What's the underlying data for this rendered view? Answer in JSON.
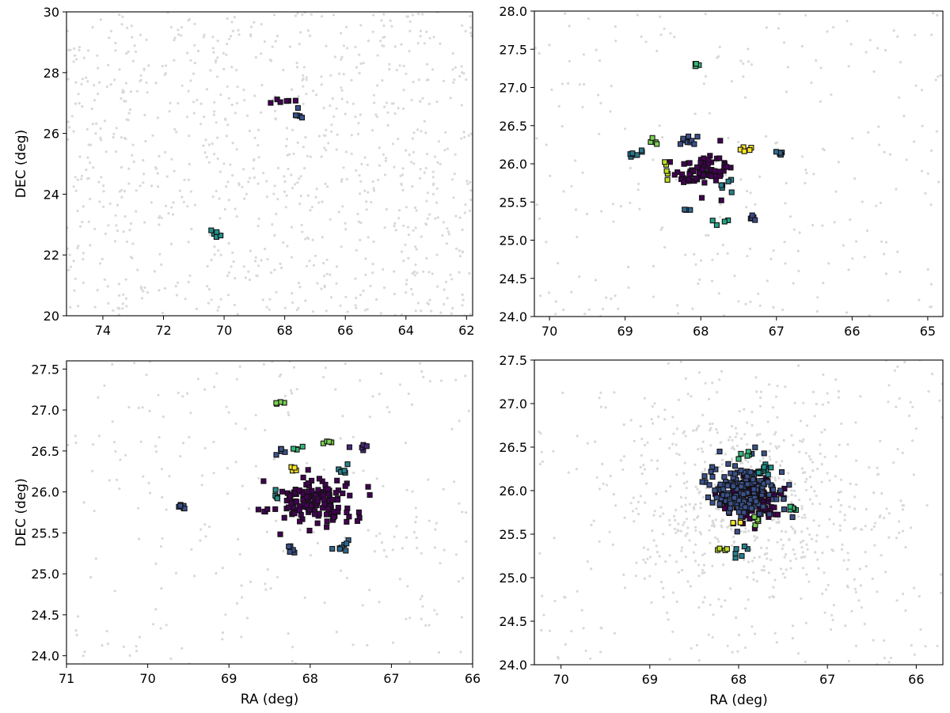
{
  "chart_data": [
    {
      "type": "scatter",
      "xlabel": "",
      "ylabel": "DEC (deg)",
      "xlim": [
        75.2,
        61.8
      ],
      "ylim": [
        20,
        30
      ],
      "xticks": [
        74,
        72,
        70,
        68,
        66,
        64,
        62
      ],
      "yticks": [
        20,
        22,
        24,
        26,
        28,
        30
      ],
      "xtick_labels": [
        "74",
        "72",
        "70",
        "68",
        "66",
        "64",
        "62"
      ],
      "ytick_labels": [
        "20",
        "22",
        "24",
        "26",
        "28",
        "30"
      ],
      "background_points": {
        "color": "#d9d9d9",
        "count": 900,
        "distribution": "uniform"
      },
      "groups": [
        {
          "color": "#440154",
          "ra": 68.2,
          "dec": 27.08,
          "n": 6,
          "spread": [
            0.35,
            0.07
          ]
        },
        {
          "color": "#3b528b",
          "ra": 67.55,
          "dec": 26.6,
          "n": 5,
          "spread": [
            0.15,
            0.25
          ]
        },
        {
          "color": "#21918c",
          "ra": 70.3,
          "dec": 22.7,
          "n": 5,
          "spread": [
            0.18,
            0.22
          ]
        }
      ]
    },
    {
      "type": "scatter",
      "xlabel": "",
      "ylabel": "",
      "xlim": [
        70.2,
        64.8
      ],
      "ylim": [
        24,
        28
      ],
      "xticks": [
        70,
        69,
        68,
        67,
        66,
        65
      ],
      "yticks": [
        24.0,
        24.5,
        25.0,
        25.5,
        26.0,
        26.5,
        27.0,
        27.5,
        28.0
      ],
      "xtick_labels": [
        "70",
        "69",
        "68",
        "67",
        "66",
        "65"
      ],
      "ytick_labels": [
        "24.0",
        "24.5",
        "25.0",
        "25.5",
        "26.0",
        "26.5",
        "27.0",
        "27.5",
        "28.0"
      ],
      "background_points": {
        "color": "#d9d9d9",
        "count": 260,
        "distribution": "uniform"
      },
      "groups": [
        {
          "color": "#440154",
          "ra": 68.0,
          "dec": 25.9,
          "n": 75,
          "spread": [
            0.28,
            0.22
          ]
        },
        {
          "color": "#3b528b",
          "ra": 68.2,
          "dec": 26.32,
          "n": 9,
          "spread": [
            0.2,
            0.06
          ]
        },
        {
          "color": "#35b779",
          "ra": 68.05,
          "dec": 27.32,
          "n": 4,
          "spread": [
            0.04,
            0.06
          ]
        },
        {
          "color": "#31688e",
          "ra": 68.2,
          "dec": 25.4,
          "n": 4,
          "spread": [
            0.05,
            0.04
          ]
        },
        {
          "color": "#2a788e",
          "ra": 68.85,
          "dec": 26.1,
          "n": 7,
          "spread": [
            0.1,
            0.1
          ]
        },
        {
          "color": "#7ad151",
          "ra": 68.65,
          "dec": 26.3,
          "n": 4,
          "spread": [
            0.08,
            0.04
          ]
        },
        {
          "color": "#bddf26",
          "ra": 68.45,
          "dec": 25.9,
          "n": 5,
          "spread": [
            0.03,
            0.1
          ]
        },
        {
          "color": "#fde725",
          "ra": 67.4,
          "dec": 26.2,
          "n": 5,
          "spread": [
            0.1,
            0.06
          ]
        },
        {
          "color": "#26828e",
          "ra": 67.7,
          "dec": 25.72,
          "n": 5,
          "spread": [
            0.1,
            0.05
          ]
        },
        {
          "color": "#21a585",
          "ra": 67.73,
          "dec": 25.25,
          "n": 4,
          "spread": [
            0.1,
            0.03
          ]
        },
        {
          "color": "#3e4989",
          "ra": 67.33,
          "dec": 25.3,
          "n": 5,
          "spread": [
            0.05,
            0.07
          ]
        },
        {
          "color": "#31688e",
          "ra": 66.95,
          "dec": 26.14,
          "n": 5,
          "spread": [
            0.06,
            0.06
          ]
        }
      ]
    },
    {
      "type": "scatter",
      "xlabel": "RA (deg)",
      "ylabel": "DEC (deg)",
      "xlim": [
        71,
        66
      ],
      "ylim": [
        23.9,
        27.6
      ],
      "xticks": [
        71,
        70,
        69,
        68,
        67,
        66
      ],
      "yticks": [
        24.0,
        24.5,
        25.0,
        25.5,
        26.0,
        26.5,
        27.0,
        27.5
      ],
      "xtick_labels": [
        "71",
        "70",
        "69",
        "68",
        "67",
        "66"
      ],
      "ytick_labels": [
        "24.0",
        "24.5",
        "25.0",
        "25.5",
        "26.0",
        "26.5",
        "27.0",
        "27.5"
      ],
      "background_points": {
        "color": "#d9d9d9",
        "count": 260,
        "distribution": "uniform"
      },
      "groups": [
        {
          "color": "#440154",
          "ra": 67.95,
          "dec": 25.9,
          "n": 140,
          "spread": [
            0.38,
            0.25
          ]
        },
        {
          "color": "#3b528b",
          "ra": 69.58,
          "dec": 25.82,
          "n": 6,
          "spread": [
            0.08,
            0.05
          ]
        },
        {
          "color": "#482878",
          "ra": 67.35,
          "dec": 26.56,
          "n": 6,
          "spread": [
            0.12,
            0.05
          ]
        },
        {
          "color": "#7ad151",
          "ra": 68.38,
          "dec": 27.08,
          "n": 4,
          "spread": [
            0.04,
            0.06
          ]
        },
        {
          "color": "#3b528b",
          "ra": 68.35,
          "dec": 26.5,
          "n": 5,
          "spread": [
            0.06,
            0.05
          ]
        },
        {
          "color": "#35b779",
          "ra": 68.15,
          "dec": 26.53,
          "n": 4,
          "spread": [
            0.05,
            0.05
          ]
        },
        {
          "color": "#7ad151",
          "ra": 67.8,
          "dec": 26.6,
          "n": 4,
          "spread": [
            0.05,
            0.02
          ]
        },
        {
          "color": "#fde725",
          "ra": 68.2,
          "dec": 26.28,
          "n": 4,
          "spread": [
            0.05,
            0.03
          ]
        },
        {
          "color": "#26828e",
          "ra": 67.6,
          "dec": 26.3,
          "n": 6,
          "spread": [
            0.06,
            0.1
          ]
        },
        {
          "color": "#21918c",
          "ra": 68.4,
          "dec": 25.95,
          "n": 5,
          "spread": [
            0.04,
            0.08
          ]
        },
        {
          "color": "#3b528b",
          "ra": 68.22,
          "dec": 25.28,
          "n": 5,
          "spread": [
            0.04,
            0.06
          ]
        },
        {
          "color": "#31688e",
          "ra": 67.6,
          "dec": 25.35,
          "n": 8,
          "spread": [
            0.08,
            0.1
          ]
        }
      ]
    },
    {
      "type": "scatter",
      "xlabel": "RA (deg)",
      "ylabel": "",
      "xlim": [
        70.3,
        65.7
      ],
      "ylim": [
        24,
        27.5
      ],
      "xticks": [
        70,
        69,
        68,
        67,
        66
      ],
      "yticks": [
        24.0,
        24.5,
        25.0,
        25.5,
        26.0,
        26.5,
        27.0,
        27.5
      ],
      "xtick_labels": [
        "70",
        "69",
        "68",
        "67",
        "66"
      ],
      "ytick_labels": [
        "24.0",
        "24.5",
        "25.0",
        "25.5",
        "26.0",
        "26.5",
        "27.0",
        "27.5"
      ],
      "background_points": {
        "color": "#d9d9d9",
        "count": 800,
        "distribution": "concentrated"
      },
      "groups": [
        {
          "color": "#440154",
          "ra": 67.85,
          "dec": 25.92,
          "n": 170,
          "spread": [
            0.25,
            0.2
          ]
        },
        {
          "color": "#3b528b",
          "ra": 67.95,
          "dec": 26.0,
          "n": 150,
          "spread": [
            0.35,
            0.24
          ]
        },
        {
          "color": "#21918c",
          "ra": 67.72,
          "dec": 26.25,
          "n": 10,
          "spread": [
            0.1,
            0.08
          ]
        },
        {
          "color": "#35b779",
          "ra": 67.92,
          "dec": 26.42,
          "n": 5,
          "spread": [
            0.05,
            0.04
          ]
        },
        {
          "color": "#35b779",
          "ra": 67.38,
          "dec": 25.8,
          "n": 8,
          "spread": [
            0.06,
            0.04
          ]
        },
        {
          "color": "#fde725",
          "ra": 68.05,
          "dec": 25.63,
          "n": 4,
          "spread": [
            0.06,
            0.03
          ]
        },
        {
          "color": "#bddf26",
          "ra": 68.18,
          "dec": 25.32,
          "n": 4,
          "spread": [
            0.05,
            0.03
          ]
        },
        {
          "color": "#26828e",
          "ra": 67.98,
          "dec": 25.3,
          "n": 6,
          "spread": [
            0.1,
            0.06
          ]
        },
        {
          "color": "#7ad151",
          "ra": 67.82,
          "dec": 25.65,
          "n": 4,
          "spread": [
            0.04,
            0.04
          ]
        }
      ]
    }
  ]
}
